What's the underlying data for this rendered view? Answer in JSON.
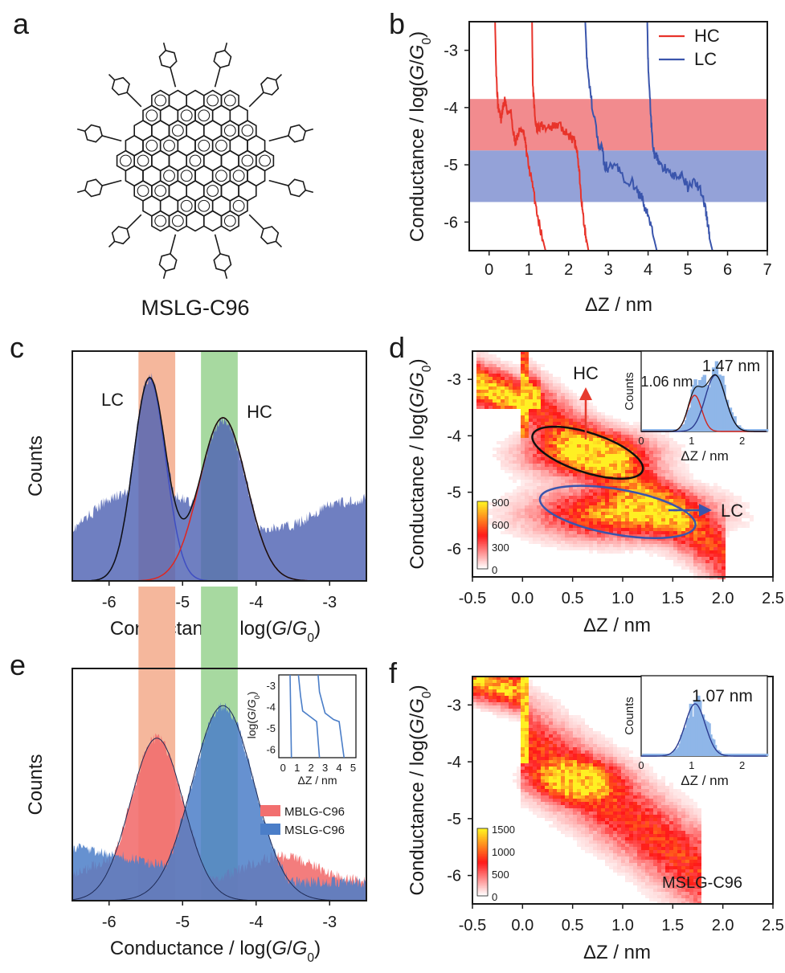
{
  "colors": {
    "hc_red": "#e8332a",
    "lc_blue": "#3a55ac",
    "band_red": "#f28b8e",
    "band_blue": "#94a2d8",
    "hist_blue": "#4f63b3",
    "shade_orange": "#f5b79c",
    "shade_green": "#a7d9a0",
    "mblg_red": "#f26f6f",
    "mslg_blue": "#4b7ec8"
  },
  "panel_a": {
    "letter": "a",
    "molecule_label": "MSLG-C96"
  },
  "chart_data": [
    {
      "id": "b",
      "letter": "b",
      "type": "line",
      "xlabel": "ΔZ / nm",
      "ylabel": "Conductance / log(G/G0)",
      "xlim": [
        -0.5,
        7
      ],
      "ylim": [
        -6.5,
        -2.5
      ],
      "xticks": [
        "0",
        "1",
        "2",
        "3",
        "4",
        "5",
        "6",
        "7"
      ],
      "yticks": [
        "-3",
        "-4",
        "-5",
        "-6"
      ],
      "bands": [
        {
          "name": "HC",
          "from": -4.75,
          "to": -3.85
        },
        {
          "name": "LC",
          "from": -5.65,
          "to": -4.75
        }
      ],
      "legend": [
        "HC",
        "LC"
      ],
      "series": [
        {
          "name": "HC",
          "x": [
            0.15,
            0.18,
            0.22,
            0.3,
            0.35,
            0.4,
            0.45,
            0.55,
            0.65,
            0.72,
            0.8,
            0.9,
            0.95,
            1.05,
            1.15,
            1.25,
            1.35,
            1.42
          ],
          "y": [
            -2.5,
            -3.4,
            -3.95,
            -4.2,
            -4.0,
            -3.85,
            -4.05,
            -4.1,
            -4.6,
            -4.5,
            -4.35,
            -4.55,
            -4.85,
            -5.2,
            -5.6,
            -6.0,
            -6.3,
            -6.5
          ]
        },
        {
          "name": "HC",
          "x": [
            1.08,
            1.1,
            1.15,
            1.2,
            1.3,
            1.5,
            1.7,
            1.9,
            2.05,
            2.15,
            2.2,
            2.25,
            2.3,
            2.35,
            2.4,
            2.45,
            2.5
          ],
          "y": [
            -2.5,
            -3.6,
            -4.15,
            -4.4,
            -4.3,
            -4.35,
            -4.3,
            -4.4,
            -4.5,
            -4.6,
            -4.7,
            -5.0,
            -5.4,
            -5.8,
            -6.1,
            -6.3,
            -6.5
          ]
        },
        {
          "name": "LC",
          "x": [
            2.42,
            2.45,
            2.5,
            2.6,
            2.75,
            2.85,
            2.9,
            3.0,
            3.2,
            3.4,
            3.6,
            3.75,
            3.85,
            3.95,
            4.05,
            4.15,
            4.22
          ],
          "y": [
            -2.5,
            -3.0,
            -3.5,
            -4.0,
            -4.6,
            -4.75,
            -5.0,
            -5.05,
            -5.0,
            -5.25,
            -5.3,
            -5.5,
            -5.6,
            -5.8,
            -6.0,
            -6.3,
            -6.5
          ]
        },
        {
          "name": "LC",
          "x": [
            3.98,
            4.0,
            4.05,
            4.1,
            4.15,
            4.2,
            4.3,
            4.5,
            4.7,
            4.85,
            5.0,
            5.2,
            5.35,
            5.45,
            5.5,
            5.55,
            5.62
          ],
          "y": [
            -2.5,
            -3.2,
            -3.9,
            -4.5,
            -4.8,
            -4.85,
            -5.0,
            -5.1,
            -5.2,
            -5.15,
            -5.4,
            -5.3,
            -5.5,
            -5.8,
            -6.0,
            -6.3,
            -6.5
          ]
        }
      ]
    },
    {
      "id": "c",
      "letter": "c",
      "type": "area",
      "xlabel": "Conductance / log(G/G0)",
      "ylabel": "Counts",
      "xlim": [
        -6.5,
        -2.5
      ],
      "xticks": [
        "-6",
        "-5",
        "-4",
        "-3"
      ],
      "labels": [
        "LC",
        "HC"
      ],
      "shade_ranges": [
        [
          -5.6,
          -5.1
        ],
        [
          -4.75,
          -4.25
        ]
      ],
      "gaussians": [
        {
          "name": "LC fit",
          "mu": -5.45,
          "sigma": 0.22,
          "amp": 0.88
        },
        {
          "name": "HC fit",
          "mu": -4.45,
          "sigma": 0.32,
          "amp": 0.71
        }
      ],
      "baseline": [
        {
          "x": -6.5,
          "y": 0.22
        },
        {
          "x": -6.0,
          "y": 0.36
        },
        {
          "x": -5.5,
          "y": 0.4
        },
        {
          "x": -5.0,
          "y": 0.36
        },
        {
          "x": -4.0,
          "y": 0.22
        },
        {
          "x": -3.5,
          "y": 0.24
        },
        {
          "x": -3.0,
          "y": 0.33
        },
        {
          "x": -2.5,
          "y": 0.36
        }
      ]
    },
    {
      "id": "d",
      "letter": "d",
      "type": "heatmap",
      "xlabel": "ΔZ / nm",
      "ylabel": "Conductance / log(G/G0)",
      "xlim": [
        -0.5,
        2.5
      ],
      "ylim": [
        -6.5,
        -2.5
      ],
      "xticks": [
        "-0.5",
        "0.0",
        "0.5",
        "1.0",
        "1.5",
        "2.0",
        "2.5"
      ],
      "yticks": [
        "-3",
        "-4",
        "-5",
        "-6"
      ],
      "colorbar_ticks": [
        "900",
        "600",
        "300",
        "0"
      ],
      "annotations": [
        "HC",
        "LC"
      ],
      "clusters": [
        {
          "name": "HC",
          "cx": 0.65,
          "cy": -4.3,
          "rx": 0.55,
          "ry": 0.35
        },
        {
          "name": "LC",
          "cx": 0.95,
          "cy": -5.35,
          "rx": 0.75,
          "ry": 0.4
        }
      ],
      "inset": {
        "xlabel": "ΔZ / nm",
        "ylabel": "Counts",
        "xticks": [
          "0",
          "1",
          "2"
        ],
        "peak_labels": [
          "1.06 nm",
          "1.47 nm"
        ],
        "gaussians": [
          {
            "mu": 1.06,
            "sigma": 0.14,
            "amp": 0.45
          },
          {
            "mu": 1.47,
            "sigma": 0.2,
            "amp": 0.7
          }
        ]
      }
    },
    {
      "id": "e",
      "letter": "e",
      "type": "area",
      "xlabel": "Conductance / log(G/G0)",
      "ylabel": "Counts",
      "xlim": [
        -6.5,
        -2.5
      ],
      "xticks": [
        "-6",
        "-5",
        "-4",
        "-3"
      ],
      "legend": [
        "MBLG-C96",
        "MSLG-C96"
      ],
      "gaussians": [
        {
          "name": "MBLG-C96 fit",
          "mu": -5.35,
          "sigma": 0.36,
          "amp": 0.7
        },
        {
          "name": "MSLG-C96 fit",
          "mu": -4.45,
          "sigma": 0.42,
          "amp": 0.84
        }
      ],
      "inset": {
        "xlabel": "ΔZ / nm",
        "ylabel": "log(G/G0)",
        "xticks": [
          "0",
          "1",
          "2",
          "3",
          "4",
          "5"
        ],
        "yticks": [
          "-3",
          "-4",
          "-5",
          "-6"
        ]
      }
    },
    {
      "id": "f",
      "letter": "f",
      "type": "heatmap",
      "xlabel": "ΔZ / nm",
      "ylabel": "Conductance / log(G/G0)",
      "xlim": [
        -0.5,
        2.5
      ],
      "ylim": [
        -6.5,
        -2.5
      ],
      "xticks": [
        "-0.5",
        "0.0",
        "0.5",
        "1.0",
        "1.5",
        "2.0",
        "2.5"
      ],
      "yticks": [
        "-3",
        "-4",
        "-5",
        "-6"
      ],
      "colorbar_ticks": [
        "1500",
        "1000",
        "500",
        "0"
      ],
      "label": "MSLG-C96",
      "inset": {
        "xlabel": "ΔZ / nm",
        "ylabel": "Counts",
        "xticks": [
          "0",
          "1",
          "2"
        ],
        "peak_labels": [
          "1.07 nm"
        ],
        "gaussians": [
          {
            "mu": 1.07,
            "sigma": 0.2,
            "amp": 0.65
          }
        ]
      }
    }
  ]
}
